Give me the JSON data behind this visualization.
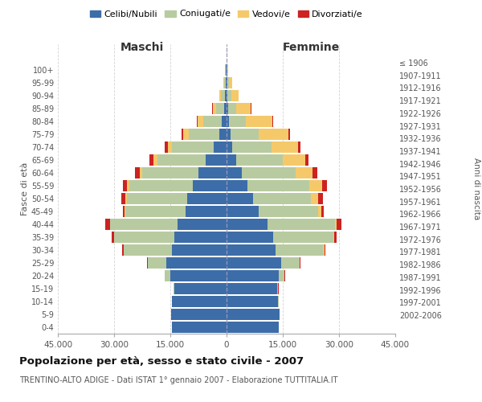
{
  "age_groups_bottom_to_top": [
    "0-4",
    "5-9",
    "10-14",
    "15-19",
    "20-24",
    "25-29",
    "30-34",
    "35-39",
    "40-44",
    "45-49",
    "50-54",
    "55-59",
    "60-64",
    "65-69",
    "70-74",
    "75-79",
    "80-84",
    "85-89",
    "90-94",
    "95-99",
    "100+"
  ],
  "birth_years_bottom_to_top": [
    "2002-2006",
    "1997-2001",
    "1992-1996",
    "1987-1991",
    "1982-1986",
    "1977-1981",
    "1972-1976",
    "1967-1971",
    "1962-1966",
    "1957-1961",
    "1952-1956",
    "1947-1951",
    "1942-1946",
    "1937-1941",
    "1932-1936",
    "1927-1931",
    "1922-1926",
    "1917-1921",
    "1912-1916",
    "1907-1911",
    "≤ 1906"
  ],
  "colors": {
    "celibe": "#3d6da8",
    "coniugato": "#b8cba0",
    "vedovo": "#f5c96a",
    "divorziato": "#cc2222"
  },
  "maschi": {
    "celibe": [
      14500,
      14800,
      14500,
      14000,
      15000,
      16000,
      14500,
      14000,
      13000,
      11000,
      10500,
      9000,
      7500,
      5500,
      3500,
      2000,
      1200,
      700,
      500,
      300,
      200
    ],
    "coniugato": [
      10,
      20,
      50,
      200,
      1500,
      5000,
      13000,
      16000,
      18000,
      16000,
      16000,
      17000,
      15000,
      13000,
      11000,
      8000,
      5000,
      2000,
      900,
      400,
      100
    ],
    "vedovo": [
      0,
      0,
      1,
      2,
      5,
      10,
      20,
      50,
      100,
      200,
      400,
      500,
      700,
      1000,
      1200,
      1500,
      1500,
      1000,
      500,
      200,
      50
    ],
    "divorziato": [
      1,
      2,
      5,
      20,
      50,
      100,
      300,
      700,
      1300,
      500,
      1100,
      1200,
      1200,
      1000,
      800,
      500,
      300,
      150,
      80,
      30,
      10
    ]
  },
  "femmine": {
    "nubile": [
      14000,
      14200,
      13800,
      13500,
      14000,
      14500,
      13000,
      12500,
      11000,
      8500,
      7000,
      5500,
      4000,
      2500,
      1500,
      1000,
      700,
      500,
      300,
      200,
      100
    ],
    "coniugata": [
      10,
      20,
      50,
      300,
      1500,
      5000,
      13000,
      16000,
      18000,
      16000,
      15500,
      16500,
      14500,
      12500,
      10500,
      7500,
      4500,
      2000,
      900,
      400,
      80
    ],
    "vedova": [
      0,
      1,
      2,
      5,
      10,
      30,
      80,
      150,
      300,
      800,
      2000,
      3500,
      4500,
      6000,
      7000,
      8000,
      7000,
      4000,
      2000,
      800,
      150
    ],
    "divorziata": [
      1,
      2,
      5,
      20,
      50,
      100,
      350,
      800,
      1400,
      600,
      1200,
      1300,
      1200,
      900,
      700,
      500,
      300,
      150,
      80,
      30,
      10
    ]
  },
  "title": "Popolazione per età, sesso e stato civile - 2007",
  "subtitle": "TRENTINO-ALTO ADIGE - Dati ISTAT 1° gennaio 2007 - Elaborazione TUTTITALIA.IT",
  "xlabel_maschi": "Maschi",
  "xlabel_femmine": "Femmine",
  "ylabel": "Fasce di età",
  "ylabel_right": "Anni di nascita",
  "xlim": 45000,
  "legend_labels": [
    "Celibi/Nubili",
    "Coniugati/e",
    "Vedovi/e",
    "Divorziati/e"
  ],
  "background_color": "#ffffff",
  "grid_color": "#c8c8c8"
}
